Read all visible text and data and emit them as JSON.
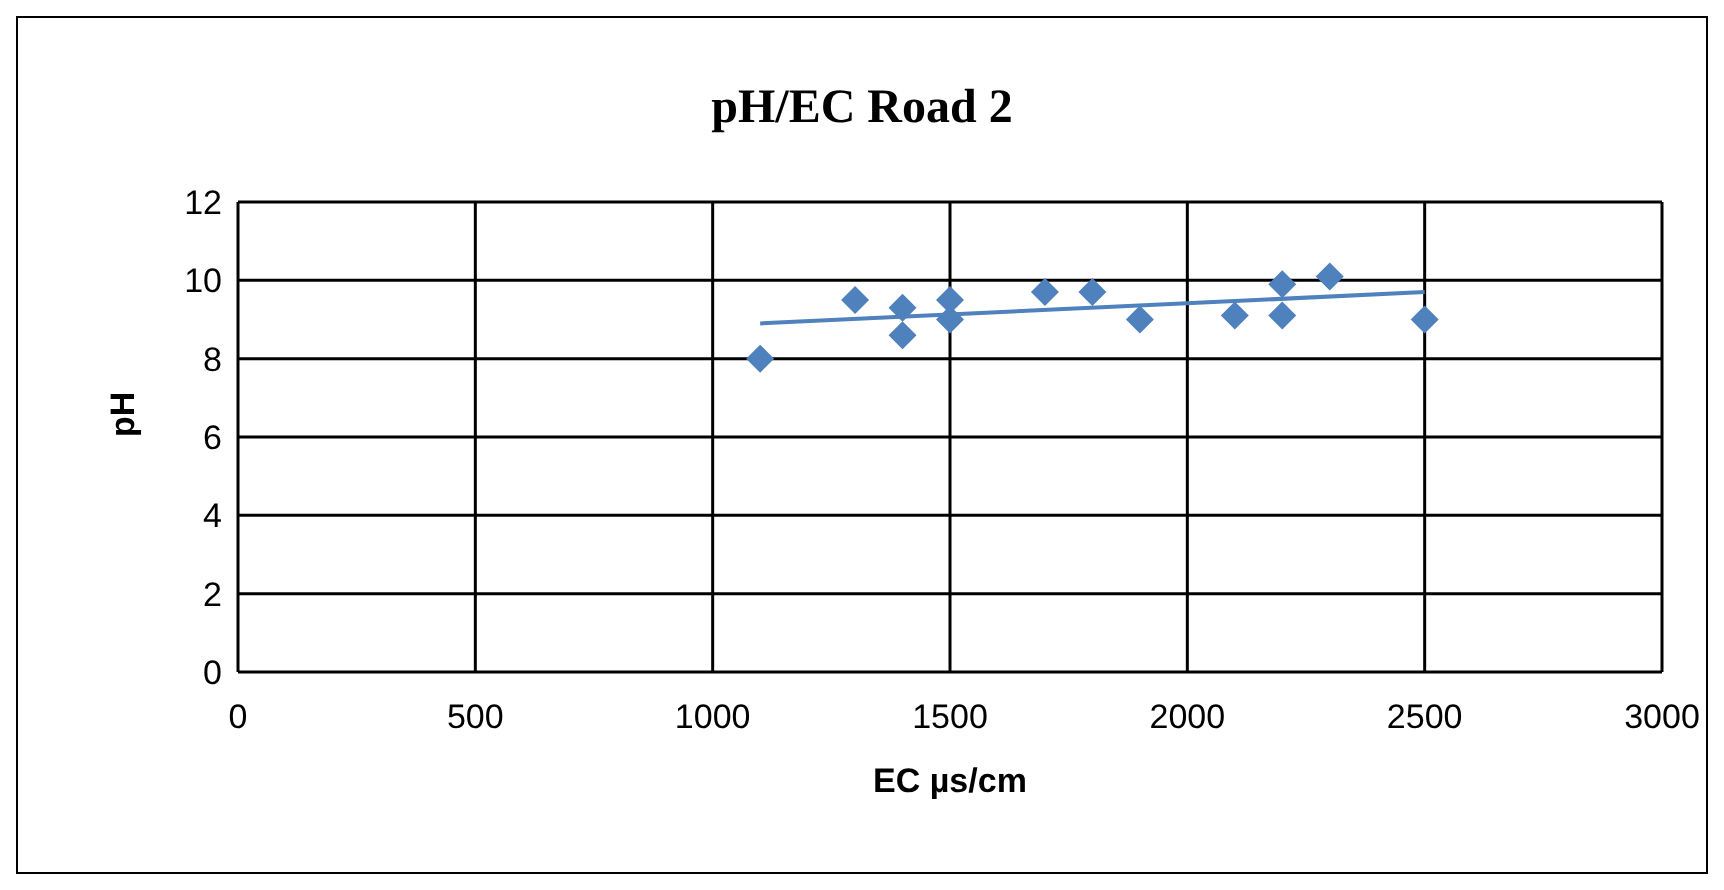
{
  "chart_data": {
    "type": "scatter",
    "title": "pH/EC Road 2",
    "xlabel": "EC µs/cm",
    "ylabel": "pH",
    "xlim": [
      0,
      3000
    ],
    "xticks": [
      0,
      500,
      1000,
      1500,
      2000,
      2500,
      3000
    ],
    "ylim": [
      0,
      12
    ],
    "yticks": [
      0,
      2,
      4,
      6,
      8,
      10,
      12
    ],
    "grid": true,
    "marker": "diamond",
    "series": [
      {
        "color": "#4f81bd",
        "x": [
          1100,
          1300,
          1400,
          1400,
          1500,
          1500,
          1700,
          1800,
          1900,
          2100,
          2200,
          2200,
          2300,
          2500
        ],
        "values": [
          8.0,
          9.5,
          9.3,
          8.6,
          9.5,
          9.0,
          9.7,
          9.7,
          9.0,
          9.1,
          9.9,
          9.1,
          10.1,
          9.0
        ]
      },
      {
        "type": "line",
        "color": "#4f81bd",
        "marker": "none",
        "x": [
          1100,
          2500
        ],
        "values": [
          8.9,
          9.7
        ]
      }
    ]
  }
}
